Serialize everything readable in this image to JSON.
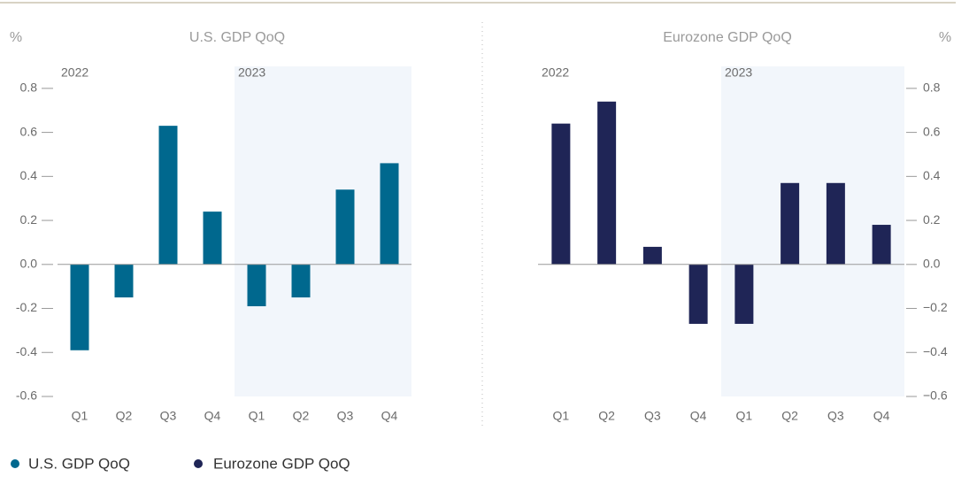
{
  "chart_data": [
    {
      "type": "bar",
      "title": "U.S. GDP QoQ",
      "y_label": "%",
      "y_axis_side": "left",
      "groups": [
        "2022",
        "2023"
      ],
      "categories": [
        "Q1",
        "Q2",
        "Q3",
        "Q4",
        "Q1",
        "Q2",
        "Q3",
        "Q4"
      ],
      "series": [
        {
          "name": "U.S. GDP QoQ",
          "color": "#00688e",
          "values": [
            -0.39,
            -0.15,
            0.63,
            0.24,
            -0.19,
            -0.15,
            0.34,
            0.46
          ]
        }
      ],
      "ylim": [
        -0.6,
        0.9
      ],
      "yticks": [
        {
          "value": -0.6,
          "label": "-0.6"
        },
        {
          "value": -0.4,
          "label": "-0.4"
        },
        {
          "value": -0.2,
          "label": "-0.2"
        },
        {
          "value": 0,
          "label": "0.0"
        },
        {
          "value": 0.2,
          "label": "0.2"
        },
        {
          "value": 0.4,
          "label": "0.4"
        },
        {
          "value": 0.6,
          "label": "0.6"
        },
        {
          "value": 0.8,
          "label": "0.8"
        }
      ]
    },
    {
      "type": "bar",
      "title": "Eurozone GDP QoQ",
      "y_label": "%",
      "y_axis_side": "right",
      "groups": [
        "2022",
        "2023"
      ],
      "categories": [
        "Q1",
        "Q2",
        "Q3",
        "Q4",
        "Q1",
        "Q2",
        "Q3",
        "Q4"
      ],
      "series": [
        {
          "name": "Eurozone GDP QoQ",
          "color": "#1f2556",
          "values": [
            0.64,
            0.74,
            0.08,
            -0.27,
            -0.27,
            0.37,
            0.37,
            0.18
          ]
        }
      ],
      "ylim": [
        -0.6,
        0.9
      ],
      "yticks": [
        {
          "value": -0.6,
          "label": "−0.6"
        },
        {
          "value": -0.4,
          "label": "−0.4"
        },
        {
          "value": -0.2,
          "label": "−0.2"
        },
        {
          "value": 0,
          "label": "0.0"
        },
        {
          "value": 0.2,
          "label": "0.2"
        },
        {
          "value": 0.4,
          "label": "0.4"
        },
        {
          "value": 0.6,
          "label": "0.6"
        },
        {
          "value": 0.8,
          "label": "0.8"
        }
      ]
    }
  ]
}
